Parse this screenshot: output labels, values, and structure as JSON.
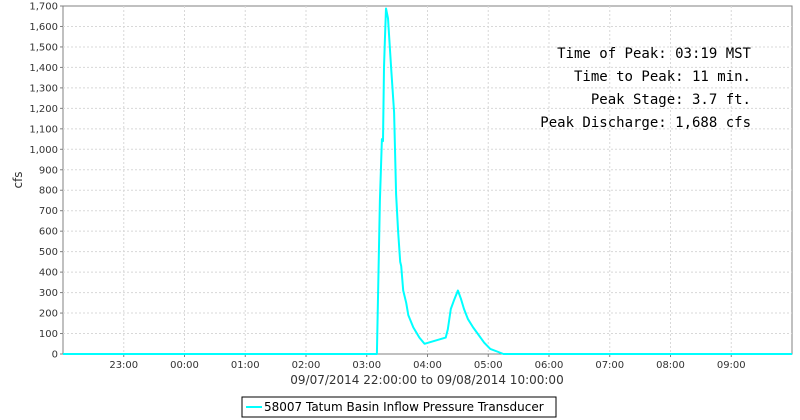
{
  "chart_data": {
    "type": "line",
    "title": "",
    "xlabel": "09/07/2014 22:00:00 to 09/08/2014 10:00:00",
    "ylabel": "cfs",
    "x_start": "09/07/2014 22:00",
    "x_end": "09/08/2014 10:00",
    "x_ticks": [
      "23:00",
      "00:00",
      "01:00",
      "02:00",
      "03:00",
      "04:00",
      "05:00",
      "06:00",
      "07:00",
      "08:00",
      "09:00"
    ],
    "ylim": [
      0,
      1700
    ],
    "y_ticks": [
      "0",
      "100",
      "200",
      "300",
      "400",
      "500",
      "600",
      "700",
      "800",
      "900",
      "1,000",
      "1,100",
      "1,200",
      "1,300",
      "1,400",
      "1,500",
      "1,600",
      "1,700"
    ],
    "grid": true,
    "legend_position": "bottom",
    "series": [
      {
        "name": "58007 Tatum Basin Inflow Pressure Transducer",
        "color": "#00ffff",
        "points": [
          [
            "22:00",
            0
          ],
          [
            "03:10",
            0
          ],
          [
            "03:13",
            750
          ],
          [
            "03:15",
            1050
          ],
          [
            "03:16",
            1040
          ],
          [
            "03:17",
            1400
          ],
          [
            "03:18",
            1550
          ],
          [
            "03:19",
            1688
          ],
          [
            "03:21",
            1640
          ],
          [
            "03:24",
            1400
          ],
          [
            "03:27",
            1180
          ],
          [
            "03:29",
            780
          ],
          [
            "03:31",
            600
          ],
          [
            "03:33",
            450
          ],
          [
            "03:34",
            430
          ],
          [
            "03:36",
            310
          ],
          [
            "03:39",
            250
          ],
          [
            "03:41",
            190
          ],
          [
            "03:46",
            130
          ],
          [
            "03:52",
            80
          ],
          [
            "03:57",
            50
          ],
          [
            "04:18",
            80
          ],
          [
            "04:20",
            120
          ],
          [
            "04:23",
            220
          ],
          [
            "04:26",
            260
          ],
          [
            "04:30",
            310
          ],
          [
            "04:33",
            270
          ],
          [
            "04:36",
            220
          ],
          [
            "04:40",
            170
          ],
          [
            "04:45",
            130
          ],
          [
            "04:51",
            90
          ],
          [
            "04:56",
            55
          ],
          [
            "05:02",
            25
          ],
          [
            "05:10",
            10
          ],
          [
            "05:15",
            0
          ],
          [
            "10:00",
            0
          ]
        ]
      }
    ],
    "annotations": [
      "Time of Peak: 03:19 MST",
      "Time to Peak: 11 min.",
      "Peak Stage: 3.7 ft.",
      "Peak Discharge: 1,688 cfs"
    ]
  }
}
